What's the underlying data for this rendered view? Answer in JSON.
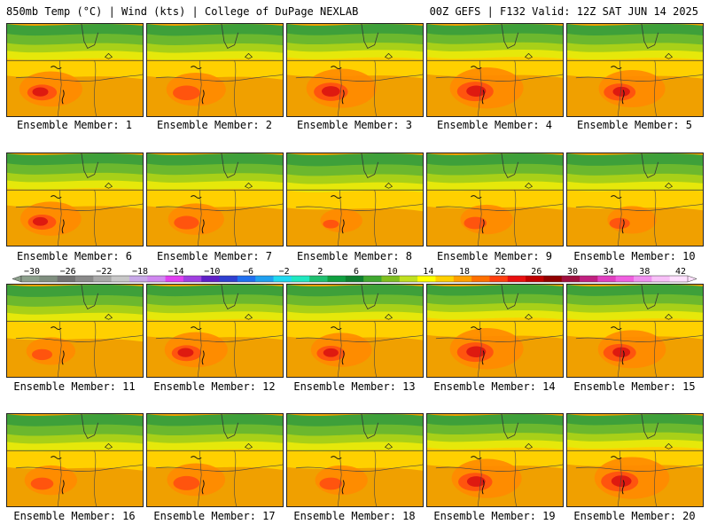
{
  "header": {
    "left": "850mb Temp (°C) | Wind (kts) | College of DuPage NEXLAB",
    "right": "00Z GEFS | F132 Valid: 12Z SAT JUN 14 2025"
  },
  "members": [
    {
      "label": "Ensemble Member: 1",
      "hot": 0.65
    },
    {
      "label": "Ensemble Member: 2",
      "hot": 0.6
    },
    {
      "label": "Ensemble Member: 3",
      "hot": 0.75
    },
    {
      "label": "Ensemble Member: 4",
      "hot": 0.8
    },
    {
      "label": "Ensemble Member: 5",
      "hot": 0.7
    },
    {
      "label": "Ensemble Member: 6",
      "hot": 0.62
    },
    {
      "label": "Ensemble Member: 7",
      "hot": 0.55
    },
    {
      "label": "Ensemble Member: 8",
      "hot": 0.35
    },
    {
      "label": "Ensemble Member: 9",
      "hot": 0.5
    },
    {
      "label": "Ensemble Member: 10",
      "hot": 0.45
    },
    {
      "label": "Ensemble Member: 11",
      "hot": 0.45
    },
    {
      "label": "Ensemble Member: 12",
      "hot": 0.65
    },
    {
      "label": "Ensemble Member: 13",
      "hot": 0.62
    },
    {
      "label": "Ensemble Member: 14",
      "hot": 0.8
    },
    {
      "label": "Ensemble Member: 15",
      "hot": 0.72
    },
    {
      "label": "Ensemble Member: 16",
      "hot": 0.5
    },
    {
      "label": "Ensemble Member: 17",
      "hot": 0.58
    },
    {
      "label": "Ensemble Member: 18",
      "hot": 0.5
    },
    {
      "label": "Ensemble Member: 19",
      "hot": 0.75
    },
    {
      "label": "Ensemble Member: 20",
      "hot": 0.82
    }
  ],
  "colorbar": {
    "ticks": [
      "-30",
      "-26",
      "-22",
      "-18",
      "-14",
      "-10",
      "-6",
      "-2",
      "2",
      "6",
      "10",
      "14",
      "18",
      "22",
      "26",
      "30",
      "34",
      "38",
      "42"
    ],
    "colors": [
      "#8ca08c",
      "#7f8f7f",
      "#727272",
      "#8a8a8a",
      "#a8a8a8",
      "#c8c8c8",
      "#c8a8e8",
      "#d088f0",
      "#e040f0",
      "#a040e0",
      "#6020c8",
      "#3040d0",
      "#2070f0",
      "#20a0f0",
      "#20d8f0",
      "#20e8c0",
      "#20c070",
      "#10a040",
      "#108030",
      "#40a830",
      "#80c020",
      "#c0e020",
      "#ffff00",
      "#ffd000",
      "#ffa000",
      "#ff7000",
      "#ff4010",
      "#e81010",
      "#c00000",
      "#900000",
      "#a01040",
      "#c02080",
      "#e040c0",
      "#f060e0",
      "#f090f0",
      "#f8c0f8",
      "#ffe0ff"
    ]
  }
}
